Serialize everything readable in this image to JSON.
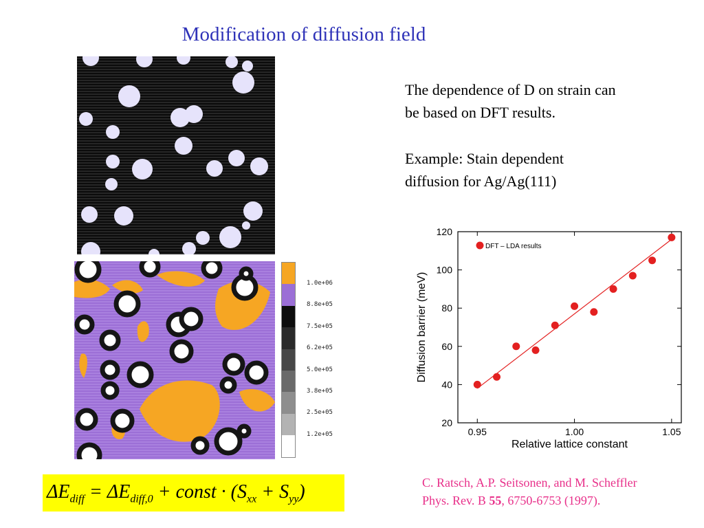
{
  "title": "Modification of diffusion field",
  "text": {
    "para1_line1": "The dependence of D on strain can",
    "para1_line2": "be based on DFT results.",
    "para2_line1": "Example: Stain dependent",
    "para2_line2": "diffusion for Ag/Ag(111)"
  },
  "colorbar": {
    "labels": [
      "1.0e+06",
      "8.8e+05",
      "7.5e+05",
      "6.2e+05",
      "5.0e+05",
      "3.8e+05",
      "2.5e+05",
      "1.2e+05"
    ],
    "colors": [
      "#f6a623",
      "#9b6fd6",
      "#0d0d0d",
      "#2a2a2a",
      "#474747",
      "#6a6a6a",
      "#8e8e8e",
      "#b3b3b3",
      "#ffffff"
    ]
  },
  "formula": {
    "delta_e": "ΔE",
    "diff": "diff",
    "eq": " = ΔE",
    "diff0": "diff,0",
    "plus": " + const · (S",
    "xx": "xx",
    "plus2": " + S",
    "yy": "yy",
    "close": ")"
  },
  "citation": {
    "line1": "C. Ratsch, A.P. Seitsonen, and M. Scheffler",
    "line2_prefix": "Phys. Rev. B ",
    "line2_vol": "55",
    "line2_suffix": ", 6750-6753 (1997)."
  },
  "colors": {
    "title": "#2f33b8",
    "citation": "#e8308a",
    "formula_bg": "#ffff00",
    "points": "#e32020",
    "fit_line": "#e32020"
  },
  "chart_data": {
    "type": "scatter",
    "xlabel": "Relative lattice constant",
    "ylabel": "Diffusion barrier (meV)",
    "xlim": [
      0.94,
      1.055
    ],
    "ylim": [
      20,
      120
    ],
    "xticks": [
      "0.95",
      "1.00",
      "1.05"
    ],
    "yticks": [
      "20",
      "40",
      "60",
      "80",
      "100",
      "120"
    ],
    "legend": "top-left",
    "series": [
      {
        "name": "DFT – LDA results",
        "x": [
          0.95,
          0.96,
          0.97,
          0.98,
          0.99,
          1.0,
          1.01,
          1.02,
          1.03,
          1.04,
          1.05
        ],
        "y": [
          40,
          44,
          60,
          58,
          71,
          81,
          78,
          90,
          97,
          105,
          117
        ]
      }
    ],
    "fit_line": {
      "x": [
        0.95,
        1.05
      ],
      "y": [
        38,
        116
      ]
    }
  }
}
